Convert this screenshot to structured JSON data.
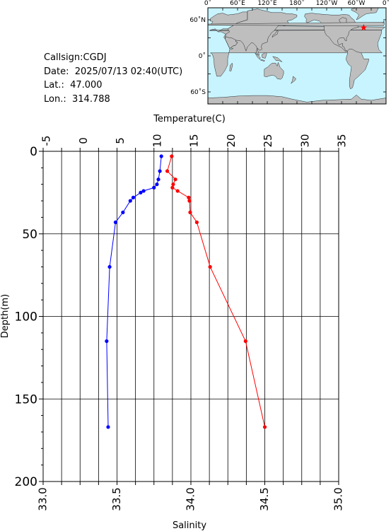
{
  "header": {
    "callsign_label": "Callsign:",
    "callsign": "CGDJ",
    "date_label": "Date:",
    "date": "2025/07/13 02:40(UTC)",
    "lat_label": "Lat.:",
    "lat": "47.000",
    "lon_label": "Lon.:",
    "lon": "314.788"
  },
  "map": {
    "lon_ticks": [
      "0˚",
      "60˚E",
      "120˚E",
      "180˚",
      "120˚W",
      "60˚W",
      "0˚"
    ],
    "lat_ticks": [
      "60˚N",
      "0˚",
      "60˚S"
    ],
    "ocean_color": "#c8f4ff",
    "land_color": "#bebebe",
    "marker_color": "#ff0000",
    "station": {
      "lat": 47.0,
      "lon": 314.788
    }
  },
  "chart_data": {
    "type": "line",
    "title": "",
    "ylabel": "Depth(m)",
    "ylim": [
      0,
      200
    ],
    "y_reversed": true,
    "yticks": [
      0,
      50,
      100,
      150,
      200
    ],
    "temperature_axis": {
      "label": "Temperature(C)",
      "lim": [
        -5,
        35
      ],
      "ticks": [
        -5,
        0,
        5,
        10,
        15,
        20,
        25,
        30,
        35
      ]
    },
    "salinity_axis": {
      "label": "Salinity",
      "lim": [
        33.0,
        35.0
      ],
      "ticks": [
        "33.0",
        "33.5",
        "34.0",
        "34.5",
        "35.0"
      ]
    },
    "series": [
      {
        "name": "",
        "axis": "temperature",
        "color": "#ff0000",
        "points": [
          {
            "depth": 3,
            "value": 12.4
          },
          {
            "depth": 12,
            "value": 11.8
          },
          {
            "depth": 17,
            "value": 12.9
          },
          {
            "depth": 20,
            "value": 12.6
          },
          {
            "depth": 22,
            "value": 12.5
          },
          {
            "depth": 24,
            "value": 13.2
          },
          {
            "depth": 28,
            "value": 14.7
          },
          {
            "depth": 30,
            "value": 14.8
          },
          {
            "depth": 37,
            "value": 14.9
          },
          {
            "depth": 43,
            "value": 15.8
          },
          {
            "depth": 70,
            "value": 17.6
          },
          {
            "depth": 115,
            "value": 22.4
          },
          {
            "depth": 167,
            "value": 25.0
          }
        ]
      },
      {
        "name": "",
        "axis": "salinity",
        "color": "#0000ff",
        "points": [
          {
            "depth": 3,
            "value": 33.8
          },
          {
            "depth": 12,
            "value": 33.79
          },
          {
            "depth": 17,
            "value": 33.78
          },
          {
            "depth": 20,
            "value": 33.77
          },
          {
            "depth": 22,
            "value": 33.75
          },
          {
            "depth": 24,
            "value": 33.68
          },
          {
            "depth": 25,
            "value": 33.66
          },
          {
            "depth": 28,
            "value": 33.61
          },
          {
            "depth": 30,
            "value": 33.59
          },
          {
            "depth": 37,
            "value": 33.54
          },
          {
            "depth": 43,
            "value": 33.49
          },
          {
            "depth": 70,
            "value": 33.45
          },
          {
            "depth": 115,
            "value": 33.43
          },
          {
            "depth": 167,
            "value": 33.44
          }
        ]
      }
    ]
  }
}
